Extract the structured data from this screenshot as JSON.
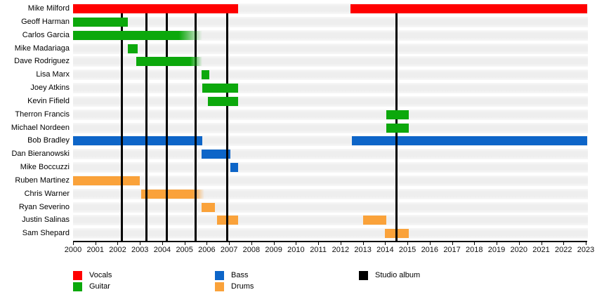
{
  "chart_data": {
    "type": "bar",
    "subtype": "timeline-gantt-band-members",
    "title": "",
    "xlabel": "",
    "ylabel": "",
    "x_axis": {
      "min": 2000,
      "max": 2023,
      "tick_step": 1,
      "ticks": [
        2000,
        2001,
        2002,
        2003,
        2004,
        2005,
        2006,
        2007,
        2008,
        2009,
        2010,
        2011,
        2012,
        2013,
        2014,
        2015,
        2016,
        2017,
        2018,
        2019,
        2020,
        2021,
        2022,
        2023
      ]
    },
    "grid": "horizontal-stripes",
    "members": [
      {
        "name": "Mike Milford",
        "role": "Vocals",
        "bars": [
          {
            "start": 2000.0,
            "end": 2007.4
          },
          {
            "start": 2012.45,
            "end": 2023.05
          }
        ]
      },
      {
        "name": "Geoff Harman",
        "role": "Guitar",
        "bars": [
          {
            "start": 2000.0,
            "end": 2002.45
          }
        ]
      },
      {
        "name": "Carlos Garcia",
        "role": "Guitar",
        "bars": [
          {
            "start": 2000.0,
            "end": 2005.8,
            "fade": true
          }
        ]
      },
      {
        "name": "Mike Madariaga",
        "role": "Guitar",
        "bars": [
          {
            "start": 2002.45,
            "end": 2002.9
          }
        ]
      },
      {
        "name": "Dave Rodriguez",
        "role": "Guitar",
        "bars": [
          {
            "start": 2002.85,
            "end": 2005.8,
            "fade": true
          }
        ]
      },
      {
        "name": "Lisa Marx",
        "role": "Guitar",
        "bars": [
          {
            "start": 2005.75,
            "end": 2006.1
          }
        ]
      },
      {
        "name": "Joey Atkins",
        "role": "Guitar",
        "bars": [
          {
            "start": 2005.8,
            "end": 2007.4
          }
        ]
      },
      {
        "name": "Kevin Fifield",
        "role": "Guitar",
        "bars": [
          {
            "start": 2006.05,
            "end": 2007.4
          }
        ]
      },
      {
        "name": "Therron Francis",
        "role": "Guitar",
        "bars": [
          {
            "start": 2014.05,
            "end": 2015.05
          }
        ]
      },
      {
        "name": "Michael Nordeen",
        "role": "Guitar",
        "bars": [
          {
            "start": 2014.05,
            "end": 2015.05
          }
        ]
      },
      {
        "name": "Bob Bradley",
        "role": "Bass",
        "bars": [
          {
            "start": 2000.0,
            "end": 2005.8
          },
          {
            "start": 2012.5,
            "end": 2023.05
          }
        ]
      },
      {
        "name": "Dan Bieranowski",
        "role": "Bass",
        "bars": [
          {
            "start": 2005.75,
            "end": 2007.05
          }
        ]
      },
      {
        "name": "Mike Boccuzzi",
        "role": "Bass",
        "bars": [
          {
            "start": 2007.05,
            "end": 2007.4
          }
        ]
      },
      {
        "name": "Ruben Martinez",
        "role": "Drums",
        "bars": [
          {
            "start": 2000.0,
            "end": 2003.0
          }
        ]
      },
      {
        "name": "Chris Warner",
        "role": "Drums",
        "bars": [
          {
            "start": 2003.05,
            "end": 2005.9,
            "fade": true
          }
        ]
      },
      {
        "name": "Ryan Severino",
        "role": "Drums",
        "bars": [
          {
            "start": 2005.75,
            "end": 2006.35
          }
        ]
      },
      {
        "name": "Justin Salinas",
        "role": "Drums",
        "bars": [
          {
            "start": 2006.45,
            "end": 2007.4
          },
          {
            "start": 2013.0,
            "end": 2014.05
          }
        ]
      },
      {
        "name": "Sam Shepard",
        "role": "Drums",
        "bars": [
          {
            "start": 2014.0,
            "end": 2015.05
          }
        ]
      }
    ],
    "studio_album_lines": [
      2002.2,
      2003.3,
      2004.2,
      2005.5,
      2006.9,
      2014.5
    ],
    "colors": {
      "Vocals": "#ff0000",
      "Guitar": "#0ca80c",
      "Bass": "#0d65c8",
      "Drums": "#faa23a",
      "Studio album": "#000000",
      "stripe": "#efefef",
      "axis": "#000000"
    },
    "legend": {
      "position": "bottom",
      "columns": [
        [
          {
            "label": "Vocals",
            "color_key": "Vocals"
          },
          {
            "label": "Guitar",
            "color_key": "Guitar"
          }
        ],
        [
          {
            "label": "Bass",
            "color_key": "Bass"
          },
          {
            "label": "Drums",
            "color_key": "Drums"
          }
        ],
        [
          {
            "label": "Studio album",
            "color_key": "Studio album"
          }
        ]
      ]
    }
  }
}
